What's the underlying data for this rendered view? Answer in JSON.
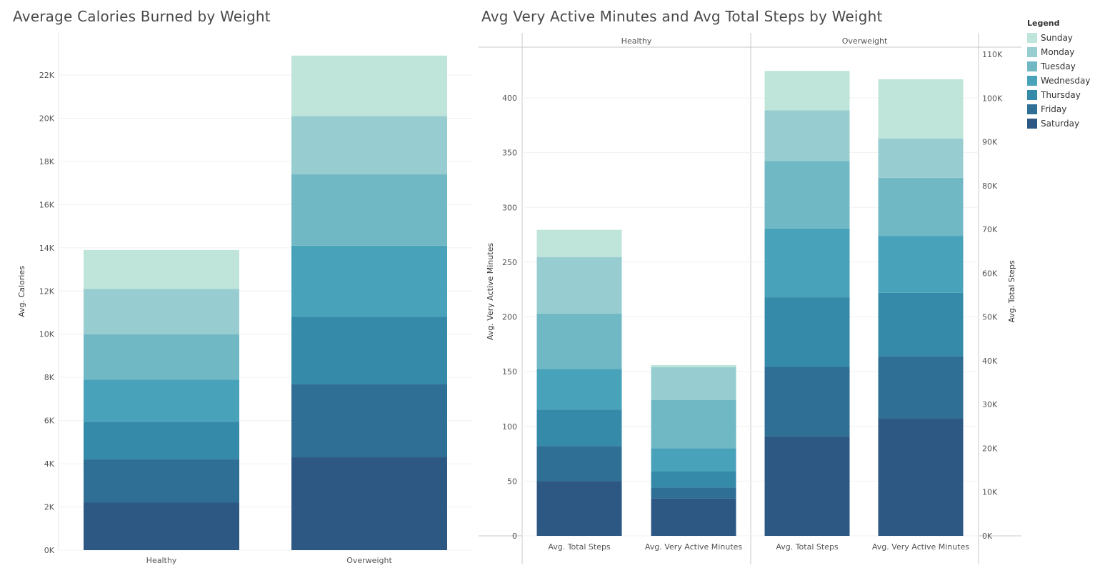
{
  "chart_data": [
    {
      "type": "bar",
      "stacked": true,
      "title": "Average Calories Burned by Weight",
      "xlabel": "",
      "ylabel": "Avg. Calories",
      "ylim": [
        0,
        23000
      ],
      "yticks": [
        "0K",
        "2K",
        "4K",
        "6K",
        "8K",
        "10K",
        "12K",
        "14K",
        "16K",
        "18K",
        "20K",
        "22K"
      ],
      "categories": [
        "Healthy",
        "Overweight"
      ],
      "series": [
        {
          "name": "Saturday",
          "values": [
            2200,
            4300
          ]
        },
        {
          "name": "Friday",
          "values": [
            2000,
            3400
          ]
        },
        {
          "name": "Thursday",
          "values": [
            1750,
            3100
          ]
        },
        {
          "name": "Wednesday",
          "values": [
            1950,
            3300
          ]
        },
        {
          "name": "Tuesday",
          "values": [
            2100,
            3300
          ]
        },
        {
          "name": "Monday",
          "values": [
            2100,
            2700
          ]
        },
        {
          "name": "Sunday",
          "values": [
            1800,
            2800
          ]
        }
      ],
      "grid": true
    },
    {
      "type": "bar",
      "stacked": true,
      "title": "Avg Very Active Minutes and Avg Total Steps by Weight",
      "panels": [
        "Healthy",
        "Overweight"
      ],
      "categories": [
        "Avg. Total Steps",
        "Avg. Very Active Minutes"
      ],
      "ylabel_left": "Avg. Very Active Minutes",
      "ylabel_right": "Avg. Total Steps",
      "ylim_left": [
        0,
        425
      ],
      "ylim_right": [
        0,
        106250
      ],
      "yticks_left": [
        "0",
        "50",
        "100",
        "150",
        "200",
        "250",
        "300",
        "350",
        "400"
      ],
      "yticks_right": [
        "0K",
        "10K",
        "20K",
        "30K",
        "40K",
        "50K",
        "60K",
        "70K",
        "80K",
        "90K",
        "100K",
        "110K"
      ],
      "series": [
        {
          "name": "Saturday",
          "steps": [
            12500,
            22700
          ],
          "minutes": [
            34,
            107
          ]
        },
        {
          "name": "Friday",
          "steps": [
            8000,
            15900
          ],
          "minutes": [
            10,
            57
          ]
        },
        {
          "name": "Thursday",
          "steps": [
            8300,
            15900
          ],
          "minutes": [
            15,
            58
          ]
        },
        {
          "name": "Wednesday",
          "steps": [
            9300,
            15700
          ],
          "minutes": [
            21,
            52
          ]
        },
        {
          "name": "Tuesday",
          "steps": [
            12700,
            15400
          ],
          "minutes": [
            44,
            53
          ]
        },
        {
          "name": "Monday",
          "steps": [
            12900,
            11600
          ],
          "minutes": [
            30,
            36
          ]
        },
        {
          "name": "Sunday",
          "steps": [
            6200,
            9000
          ],
          "minutes": [
            2,
            54
          ]
        }
      ],
      "grid": true
    }
  ],
  "legend": {
    "title": "Legend",
    "placement": "right",
    "items": [
      {
        "name": "Sunday",
        "color": "#bfe4d9"
      },
      {
        "name": "Monday",
        "color": "#97cdd0"
      },
      {
        "name": "Tuesday",
        "color": "#70b8c4"
      },
      {
        "name": "Wednesday",
        "color": "#48a2b9"
      },
      {
        "name": "Thursday",
        "color": "#358aa9"
      },
      {
        "name": "Friday",
        "color": "#2f6f96"
      },
      {
        "name": "Saturday",
        "color": "#2d5883"
      }
    ]
  }
}
